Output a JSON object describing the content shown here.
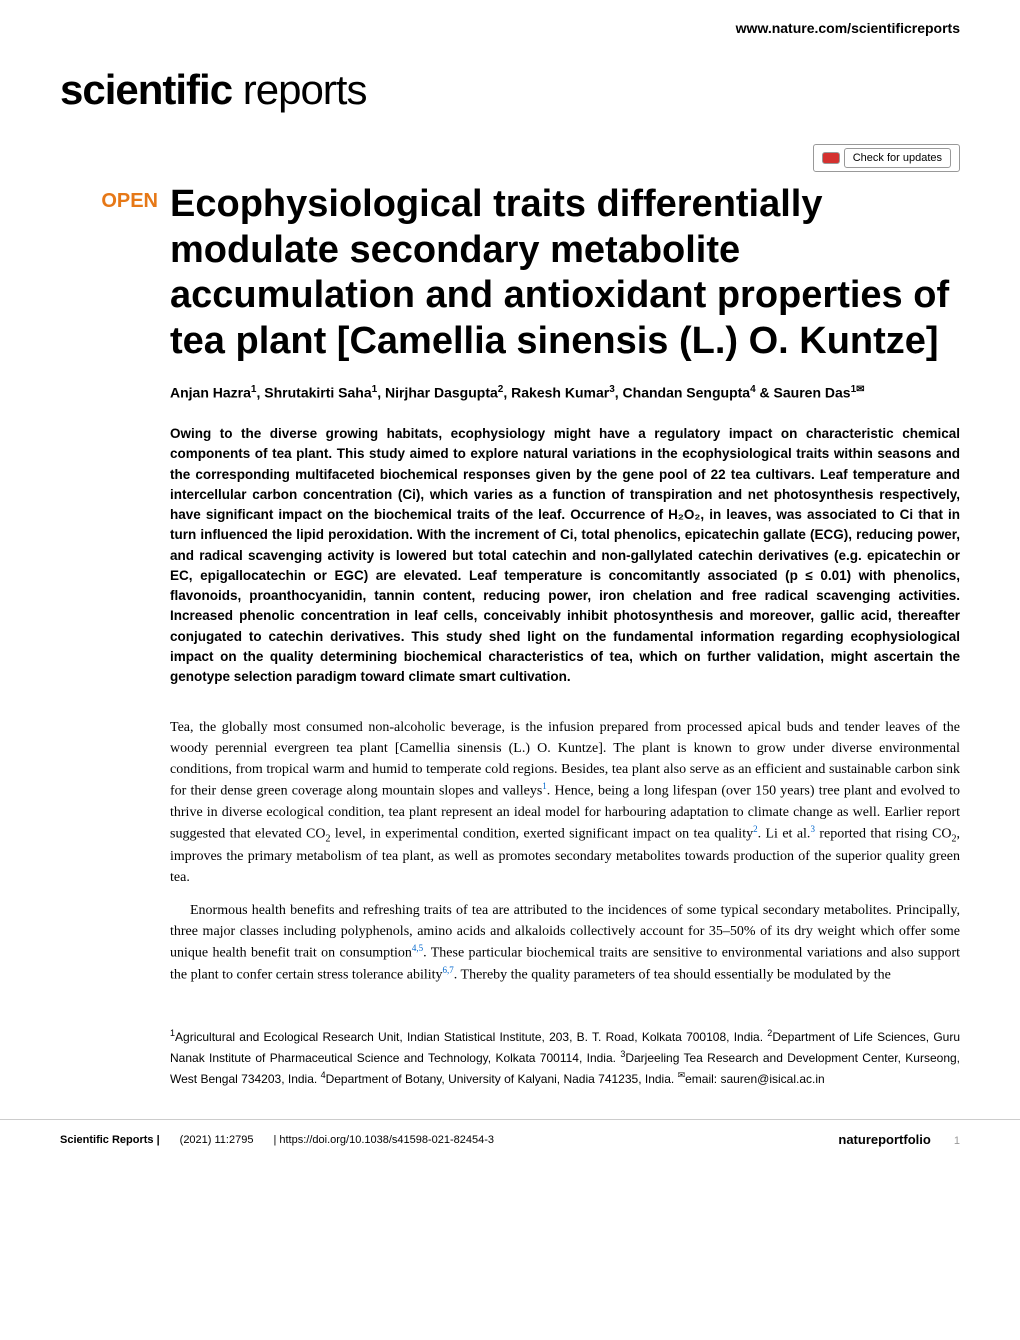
{
  "header": {
    "url": "www.nature.com/scientificreports"
  },
  "logo": {
    "bold": "scientific",
    "light": " reports"
  },
  "updates_badge": "Check for updates",
  "open_label": "OPEN",
  "title": "Ecophysiological traits differentially modulate secondary metabolite accumulation and antioxidant properties of tea plant [Camellia sinensis (L.) O. Kuntze]",
  "authors_html": "Anjan Hazra<sup>1</sup>, Shrutakirti Saha<sup>1</sup>, Nirjhar Dasgupta<sup>2</sup>, Rakesh Kumar<sup>3</sup>, Chandan Sengupta<sup>4</sup> & Sauren Das<sup>1✉</sup>",
  "abstract": "Owing to the diverse growing habitats, ecophysiology might have a regulatory impact on characteristic chemical components of tea plant. This study aimed to explore natural variations in the ecophysiological traits within seasons and the corresponding multifaceted biochemical responses given by the gene pool of 22 tea cultivars. Leaf temperature and intercellular carbon concentration (Ci), which varies as a function of transpiration and net photosynthesis respectively, have significant impact on the biochemical traits of the leaf. Occurrence of H₂O₂, in leaves, was associated to Ci that in turn influenced the lipid peroxidation. With the increment of Ci, total phenolics, epicatechin gallate (ECG), reducing power, and radical scavenging activity is lowered but total catechin and non-gallylated catechin derivatives (e.g. epicatechin or EC, epigallocatechin or EGC) are elevated. Leaf temperature is concomitantly associated (p ≤ 0.01) with phenolics, flavonoids, proanthocyanidin, tannin content, reducing power, iron chelation and free radical scavenging activities. Increased phenolic concentration in leaf cells, conceivably inhibit photosynthesis and moreover, gallic acid, thereafter conjugated to catechin derivatives. This study shed light on the fundamental information regarding ecophysiological impact on the quality determining biochemical characteristics of tea, which on further validation, might ascertain the genotype selection paradigm toward climate smart cultivation.",
  "body_para_1": "Tea, the globally most consumed non-alcoholic beverage, is the infusion prepared from processed apical buds and tender leaves of the woody perennial evergreen tea plant [Camellia sinensis (L.) O. Kuntze]. The plant is known to grow under diverse environmental conditions, from tropical warm and humid to temperate cold regions. Besides, tea plant also serve as an efficient and sustainable carbon sink for their dense green coverage along mountain slopes and valleys¹. Hence, being a long lifespan (over 150 years) tree plant and evolved to thrive in diverse ecological condition, tea plant represent an ideal model for harbouring adaptation to climate change as well. Earlier report suggested that elevated CO₂ level, in experimental condition, exerted significant impact on tea quality². Li et al.³ reported that rising CO₂, improves the primary metabolism of tea plant, as well as promotes secondary metabolites towards production of the superior quality green tea.",
  "body_para_2": "Enormous health benefits and refreshing traits of tea are attributed to the incidences of some typical secondary metabolites. Principally, three major classes including polyphenols, amino acids and alkaloids collectively account for 35–50% of its dry weight which offer some unique health benefit trait on consumption⁴,⁵. These particular biochemical traits are sensitive to environmental variations and also support the plant to confer certain stress tolerance ability⁶,⁷. Thereby the quality parameters of tea should essentially be modulated by the",
  "affiliations": "¹Agricultural and Ecological Research Unit, Indian Statistical Institute, 203, B. T. Road, Kolkata 700108, India. ²Department of Life Sciences, Guru Nanak Institute of Pharmaceutical Science and Technology, Kolkata 700114, India. ³Darjeeling Tea Research and Development Center, Kurseong, West Bengal 734203, India. ⁴Department of Botany, University of Kalyani, Nadia 741235, India. ✉email: sauren@isical.ac.in",
  "footer": {
    "journal": "Scientific Reports |",
    "citation": "(2021) 11:2795",
    "doi": "| https://doi.org/10.1038/s41598-021-82454-3",
    "publisher": "natureportfolio",
    "page": "1"
  },
  "colors": {
    "open_orange": "#e67817",
    "link_blue": "#0066cc",
    "text_black": "#000000",
    "bg_white": "#ffffff",
    "border_gray": "#cccccc",
    "check_red": "#d4312f"
  }
}
